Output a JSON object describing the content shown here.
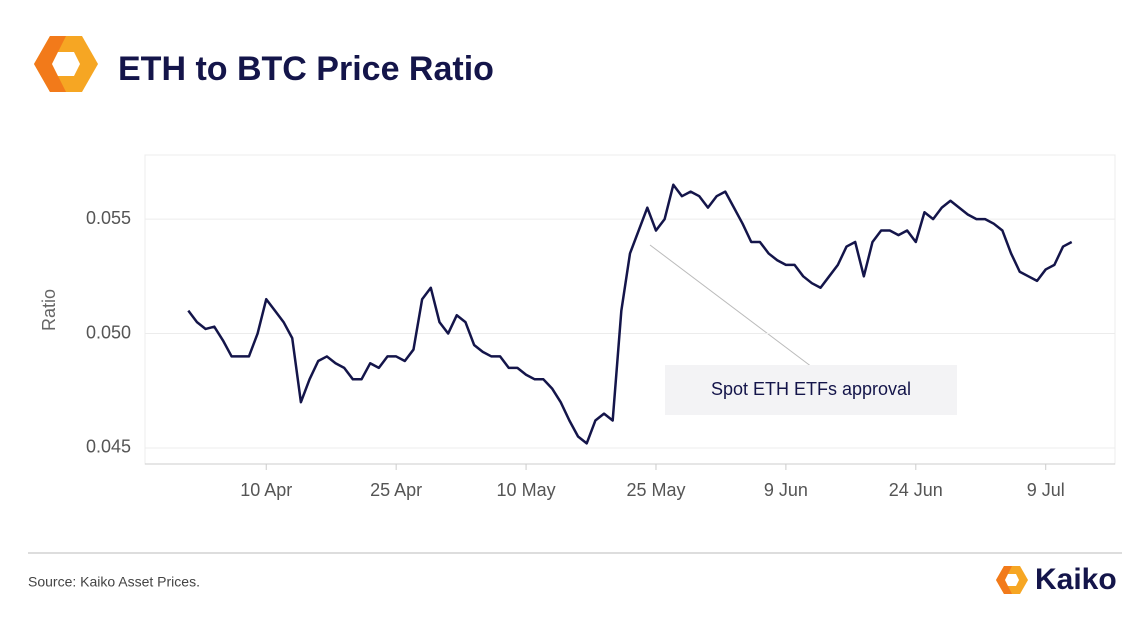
{
  "chart_data": {
    "type": "line",
    "title": "ETH to BTC Price Ratio",
    "y_label": "Ratio",
    "annotation": "Spot ETH ETFs approval",
    "source": "Source: Kaiko Asset Prices.",
    "brand": "Kaiko",
    "color": "#14154a",
    "grid": true,
    "x": [
      "1 Apr",
      "2 Apr",
      "3 Apr",
      "4 Apr",
      "5 Apr",
      "6 Apr",
      "7 Apr",
      "8 Apr",
      "9 Apr",
      "10 Apr",
      "11 Apr",
      "12 Apr",
      "13 Apr",
      "14 Apr",
      "15 Apr",
      "16 Apr",
      "17 Apr",
      "18 Apr",
      "19 Apr",
      "20 Apr",
      "21 Apr",
      "22 Apr",
      "23 Apr",
      "24 Apr",
      "25 Apr",
      "26 Apr",
      "27 Apr",
      "28 Apr",
      "29 Apr",
      "30 Apr",
      "1 May",
      "2 May",
      "3 May",
      "4 May",
      "5 May",
      "6 May",
      "7 May",
      "8 May",
      "9 May",
      "10 May",
      "11 May",
      "12 May",
      "13 May",
      "14 May",
      "15 May",
      "16 May",
      "17 May",
      "18 May",
      "19 May",
      "20 May",
      "21 May",
      "22 May",
      "23 May",
      "24 May",
      "25 May",
      "26 May",
      "27 May",
      "28 May",
      "29 May",
      "30 May",
      "31 May",
      "1 Jun",
      "2 Jun",
      "3 Jun",
      "4 Jun",
      "5 Jun",
      "6 Jun",
      "7 Jun",
      "8 Jun",
      "9 Jun",
      "10 Jun",
      "11 Jun",
      "12 Jun",
      "13 Jun",
      "14 Jun",
      "15 Jun",
      "16 Jun",
      "17 Jun",
      "18 Jun",
      "19 Jun",
      "20 Jun",
      "21 Jun",
      "22 Jun",
      "23 Jun",
      "24 Jun",
      "25 Jun",
      "26 Jun",
      "27 Jun",
      "28 Jun",
      "29 Jun",
      "30 Jun",
      "1 Jul",
      "2 Jul",
      "3 Jul",
      "4 Jul",
      "5 Jul",
      "6 Jul",
      "7 Jul",
      "8 Jul",
      "9 Jul",
      "10 Jul",
      "11 Jul",
      "12 Jul"
    ],
    "values": [
      0.051,
      0.0505,
      0.0502,
      0.0503,
      0.0497,
      0.049,
      0.049,
      0.049,
      0.05,
      0.0515,
      0.051,
      0.0505,
      0.0498,
      0.047,
      0.048,
      0.0488,
      0.049,
      0.0487,
      0.0485,
      0.048,
      0.048,
      0.0487,
      0.0485,
      0.049,
      0.049,
      0.0488,
      0.0493,
      0.0515,
      0.052,
      0.0505,
      0.05,
      0.0508,
      0.0505,
      0.0495,
      0.0492,
      0.049,
      0.049,
      0.0485,
      0.0485,
      0.0482,
      0.048,
      0.048,
      0.0476,
      0.047,
      0.0462,
      0.0455,
      0.0452,
      0.0462,
      0.0465,
      0.0462,
      0.051,
      0.0535,
      0.0545,
      0.0555,
      0.0545,
      0.055,
      0.0565,
      0.056,
      0.0562,
      0.056,
      0.0555,
      0.056,
      0.0562,
      0.0555,
      0.0548,
      0.054,
      0.054,
      0.0535,
      0.0532,
      0.053,
      0.053,
      0.0525,
      0.0522,
      0.052,
      0.0525,
      0.053,
      0.0538,
      0.054,
      0.0525,
      0.054,
      0.0545,
      0.0545,
      0.0543,
      0.0545,
      0.054,
      0.0553,
      0.055,
      0.0555,
      0.0558,
      0.0555,
      0.0552,
      0.055,
      0.055,
      0.0548,
      0.0545,
      0.0535,
      0.0527,
      0.0525,
      0.0523,
      0.0528,
      0.053,
      0.0538,
      0.054
    ],
    "xlim": [
      "27 Mar",
      "17 Jul"
    ],
    "xticks": [
      "10 Apr",
      "25 Apr",
      "10 May",
      "25 May",
      "9 Jun",
      "24 Jun",
      "9 Jul"
    ],
    "ylim": [
      0.0443,
      0.0578
    ],
    "yticks": [
      0.055,
      {
        "value": 0.05,
        "label": "0.050"
      },
      0.045
    ]
  }
}
